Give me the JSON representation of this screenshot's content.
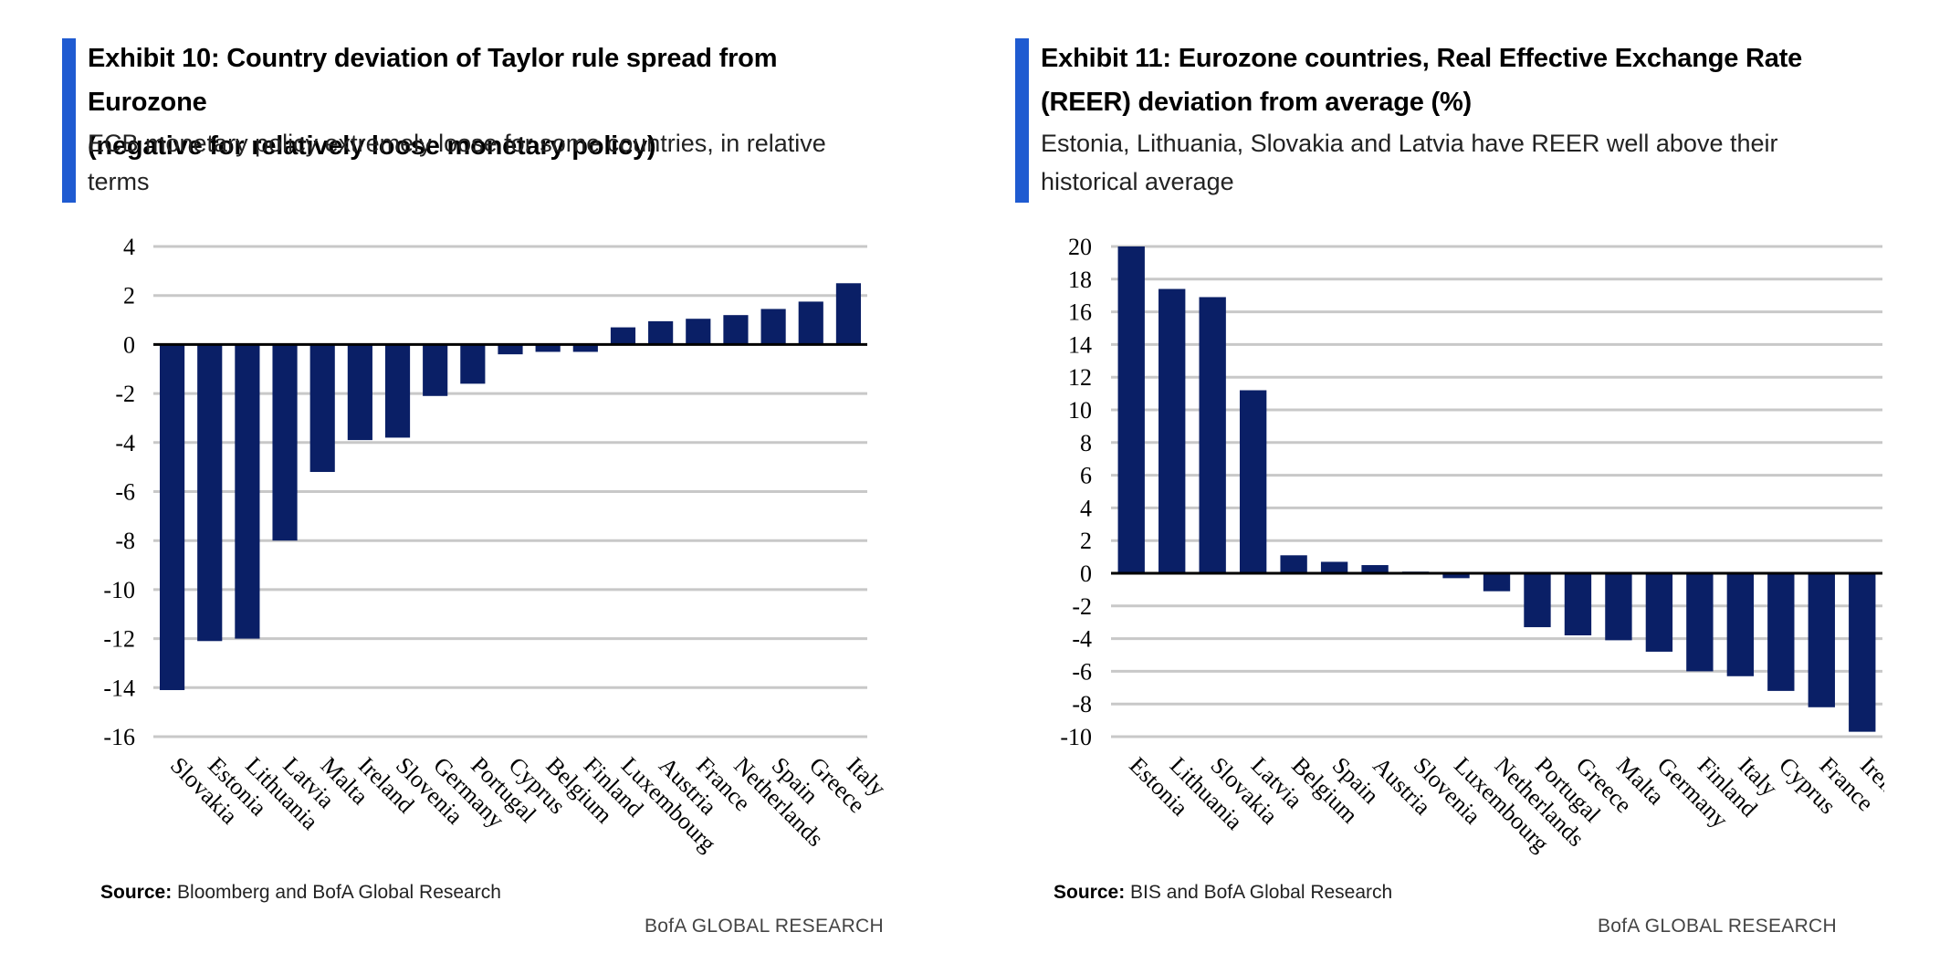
{
  "exhibits": [
    {
      "title_line1": "Exhibit 10: Country deviation of Taylor rule spread from Eurozone",
      "title_line2": "(negative for relatively loose monetary policy)",
      "subtitle_line1": "ECB monetary policy extremely loose for some countries, in relative",
      "subtitle_line2": "terms",
      "source_label": "Source:",
      "source_text": " Bloomberg and BofA Global Research",
      "brand": "BofA GLOBAL RESEARCH"
    },
    {
      "title_line1": "Exhibit 11: Eurozone countries, Real Effective Exchange Rate",
      "title_line2": "(REER) deviation from average (%)",
      "subtitle_line1": "Estonia, Lithuania, Slovakia and Latvia have REER well above their",
      "subtitle_line2": "historical average",
      "source_label": "Source:",
      "source_text": " BIS and BofA Global Research",
      "brand": "BofA GLOBAL RESEARCH"
    }
  ],
  "colors": {
    "bar": "#0a1f66",
    "grid": "#c8c8c8",
    "axis": "#000000",
    "accent": "#1f5bd1"
  },
  "chart_data": [
    {
      "type": "bar",
      "title": "Exhibit 10: Country deviation of Taylor rule spread from Eurozone (negative for relatively loose monetary policy)",
      "categories": [
        "Slovakia",
        "Estonia",
        "Lithuania",
        "Latvia",
        "Malta",
        "Ireland",
        "Slovenia",
        "Germany",
        "Portugal",
        "Cyprus",
        "Belgium",
        "Finland",
        "Luxembourg",
        "Austria",
        "France",
        "Netherlands",
        "Spain",
        "Greece",
        "Italy"
      ],
      "values": [
        -14.1,
        -12.1,
        -12.0,
        -8.0,
        -5.2,
        -3.9,
        -3.8,
        -2.1,
        -1.6,
        -0.4,
        -0.3,
        -0.3,
        0.7,
        0.95,
        1.05,
        1.2,
        1.45,
        1.75,
        2.5
      ],
      "ylim": [
        -16,
        4
      ],
      "yticks": [
        4,
        2,
        0,
        -2,
        -4,
        -6,
        -8,
        -10,
        -12,
        -14,
        -16
      ],
      "grid": true,
      "xlabel": "",
      "ylabel": ""
    },
    {
      "type": "bar",
      "title": "Exhibit 11: Eurozone countries, Real Effective Exchange Rate (REER) deviation from average (%)",
      "categories": [
        "Estonia",
        "Lithuania",
        "Slovakia",
        "Latvia",
        "Belgium",
        "Spain",
        "Austria",
        "Slovenia",
        "Luxembourg",
        "Netherlands",
        "Portugal",
        "Greece",
        "Malta",
        "Germany",
        "Finland",
        "Italy",
        "Cyprus",
        "France",
        "Ireland"
      ],
      "values": [
        20.0,
        17.4,
        16.9,
        11.2,
        1.1,
        0.7,
        0.5,
        0.1,
        -0.3,
        -1.1,
        -3.3,
        -3.8,
        -4.1,
        -4.8,
        -6.0,
        -6.3,
        -7.2,
        -8.2,
        -9.7
      ],
      "ylim": [
        -10,
        20
      ],
      "yticks": [
        20,
        18,
        16,
        14,
        12,
        10,
        8,
        6,
        4,
        2,
        0,
        -2,
        -4,
        -6,
        -8,
        -10
      ],
      "grid": true,
      "xlabel": "",
      "ylabel": ""
    }
  ]
}
